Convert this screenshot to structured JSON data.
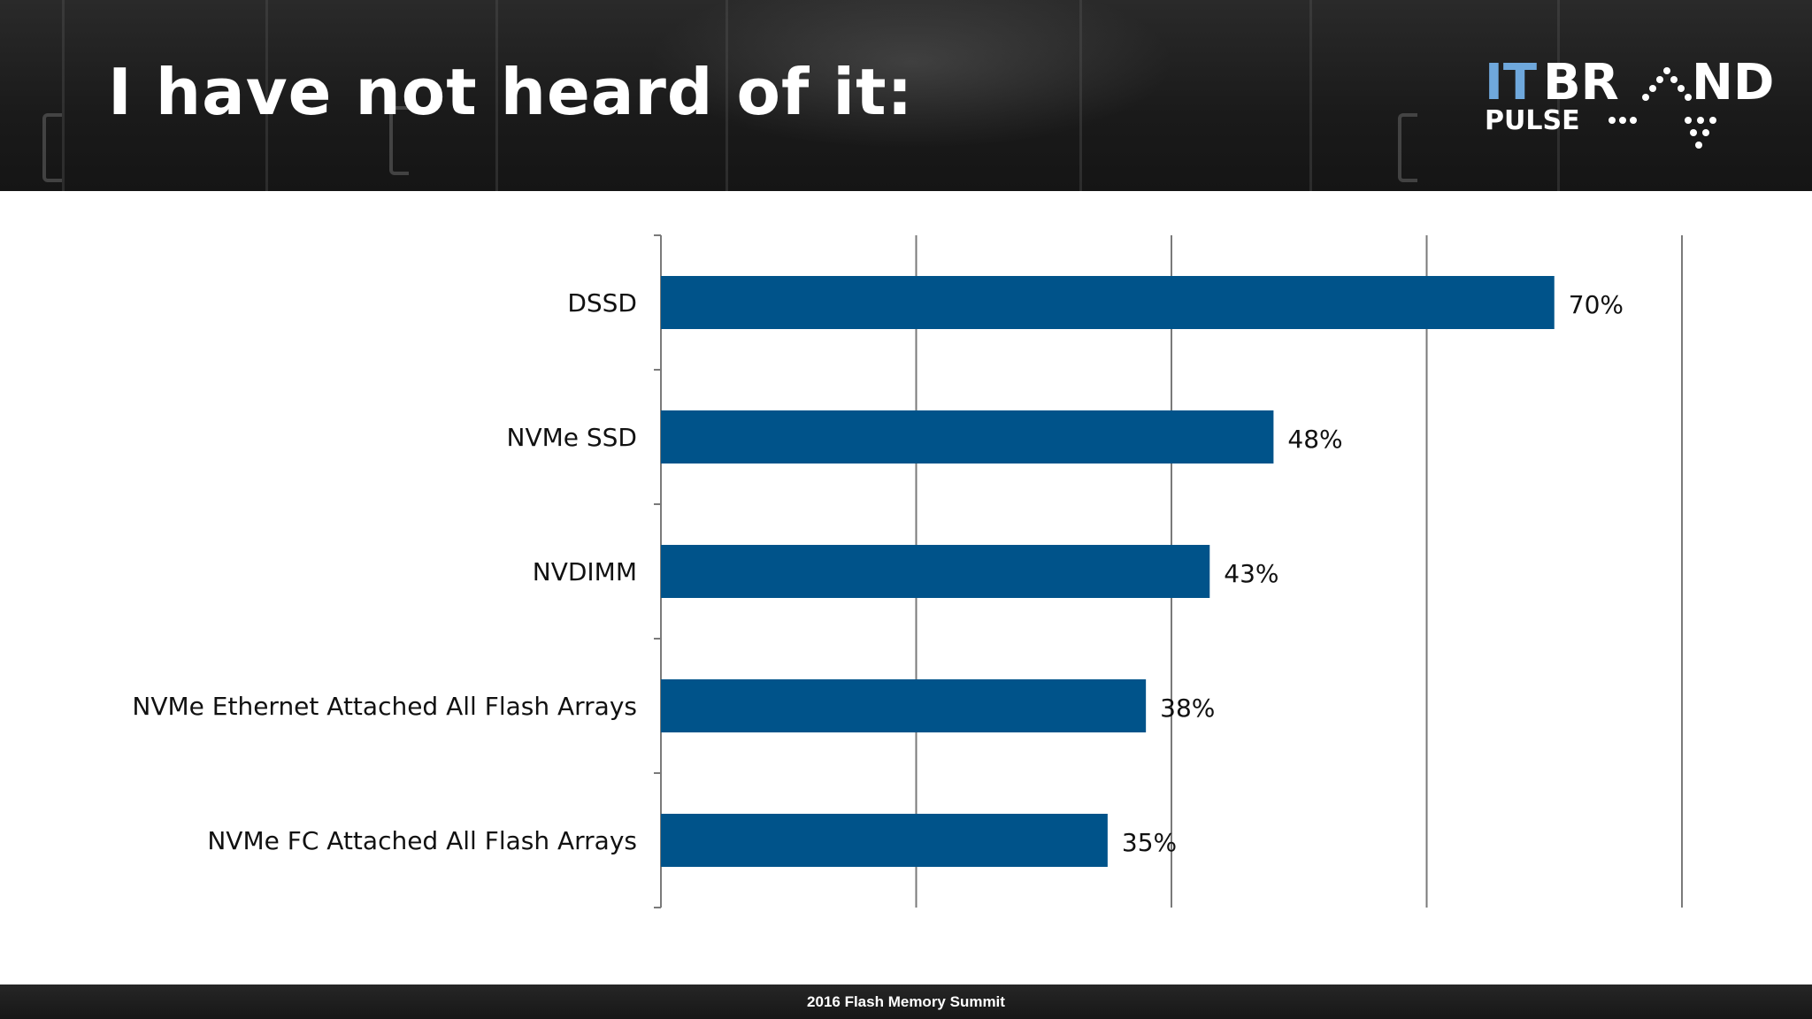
{
  "slide": {
    "title": "I have not heard of it:",
    "footer": "2016 Flash Memory Summit"
  },
  "logo": {
    "line1_part1": "IT",
    "line1_part2": "BR",
    "line1_part3": "ND",
    "line2": "PULSE"
  },
  "colors": {
    "bar": "#00538a",
    "gridline": "#7a7a7a",
    "logo_accent": "#6fa8dc",
    "logo_main": "#ffffff"
  },
  "chart_data": {
    "type": "bar",
    "orientation": "horizontal",
    "categories": [
      "DSSD",
      "NVMe SSD",
      "NVDIMM",
      "NVMe Ethernet Attached All Flash Arrays",
      "NVMe FC Attached All Flash Arrays"
    ],
    "values": [
      70,
      48,
      43,
      38,
      35
    ],
    "value_labels": [
      "70%",
      "48%",
      "43%",
      "38%",
      "35%"
    ],
    "xlim": [
      0,
      80
    ],
    "grid": true,
    "legend": "none"
  }
}
